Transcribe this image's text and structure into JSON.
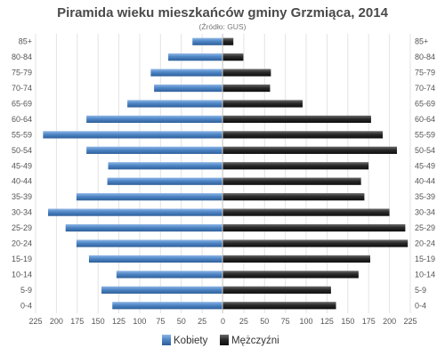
{
  "chart_data": {
    "type": "bar",
    "orientation": "horizontal",
    "title": "Piramida wieku mieszkańców gminy Grzmiąca, 2014",
    "subtitle": "(Źródło: GUS)",
    "categories": [
      "85+",
      "80-84",
      "75-79",
      "70-74",
      "65-69",
      "60-64",
      "55-59",
      "50-54",
      "45-49",
      "40-44",
      "35-39",
      "30-34",
      "25-29",
      "20-24",
      "15-19",
      "10-14",
      "5-9",
      "0-4"
    ],
    "series": [
      {
        "name": "Kobiety",
        "color": "#4f86c6",
        "values": [
          36,
          65,
          86,
          82,
          114,
          163,
          215,
          163,
          137,
          138,
          175,
          209,
          188,
          175,
          160,
          127,
          145,
          132
        ]
      },
      {
        "name": "Mężczyźni",
        "color": "#2a2a2a",
        "values": [
          13,
          25,
          58,
          57,
          96,
          178,
          192,
          209,
          175,
          166,
          170,
          200,
          219,
          222,
          177,
          163,
          130,
          136
        ]
      }
    ],
    "xlim": [
      -225,
      225
    ],
    "x_ticks": [
      "225",
      "200",
      "175",
      "150",
      "125",
      "100",
      "75",
      "50",
      "25",
      "0",
      "25",
      "50",
      "75",
      "100",
      "125",
      "150",
      "175",
      "200",
      "225"
    ],
    "grid": true,
    "legend_position": "bottom-center"
  }
}
